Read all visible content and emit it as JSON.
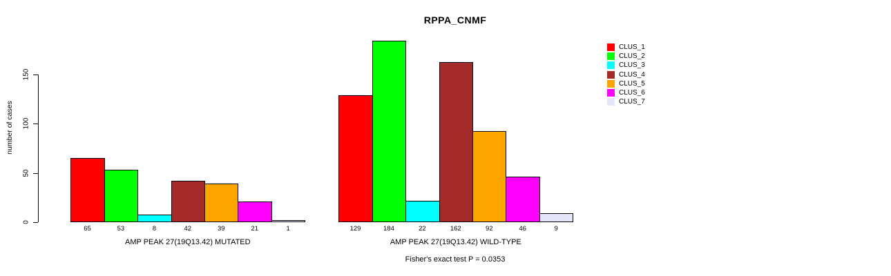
{
  "chart": {
    "title": "RPPA_CNMF",
    "ylabel": "number of cases",
    "annotation": "Fisher's exact test P = 0.0353"
  },
  "chart_data": {
    "type": "bar",
    "title": "RPPA_CNMF",
    "xlabel": "",
    "ylabel": "number of cases",
    "yticks": [
      0,
      50,
      100,
      150
    ],
    "ylim": [
      0,
      192
    ],
    "grid": false,
    "legend_position": "right",
    "legend": [
      "CLUS_1",
      "CLUS_2",
      "CLUS_3",
      "CLUS_4",
      "CLUS_5",
      "CLUS_6",
      "CLUS_7"
    ],
    "series_colors": [
      "#FF0000",
      "#00FF00",
      "#00FFFF",
      "#A52A2A",
      "#FFA500",
      "#FF00FF",
      "#E6E6FA"
    ],
    "groups": [
      {
        "label": "AMP PEAK 27(19Q13.42) MUTATED",
        "values": [
          65,
          53,
          8,
          42,
          39,
          21,
          1
        ]
      },
      {
        "label": "AMP PEAK 27(19Q13.42) WILD-TYPE",
        "values": [
          129,
          184,
          22,
          162,
          92,
          46,
          9
        ]
      }
    ],
    "bar_value_labels": true,
    "annotation": "Fisher's exact test P = 0.0353"
  }
}
